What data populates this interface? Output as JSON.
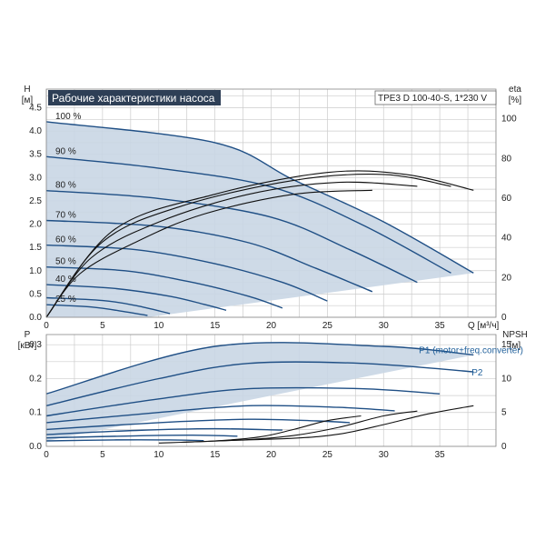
{
  "header": {
    "title": "Рабочие характеристики насоса",
    "model": "TPE3 D 100-40-S, 1*230 V"
  },
  "chart_data": [
    {
      "type": "line",
      "name": "Q-H",
      "xlabel": "Q [м³/ч]",
      "ylabel": "H [м]",
      "y2label": "eta [%]",
      "xlim": [
        0,
        40
      ],
      "ylim": [
        0,
        4.9
      ],
      "y2lim": [
        0,
        115
      ],
      "xticks": [
        0,
        5,
        10,
        15,
        20,
        25,
        30,
        35
      ],
      "yticks": [
        0.0,
        0.5,
        1.0,
        1.5,
        2.0,
        2.5,
        3.0,
        3.5,
        4.0,
        4.5
      ],
      "y2ticks": [
        0,
        20,
        40,
        60,
        80,
        100
      ],
      "grid": true,
      "head_curves": [
        {
          "label": "100 %",
          "points": [
            [
              0,
              4.2
            ],
            [
              15,
              3.75
            ],
            [
              22,
              2.95
            ],
            [
              30,
              2.05
            ],
            [
              38,
              0.95
            ]
          ]
        },
        {
          "label": "90 %",
          "points": [
            [
              0,
              3.45
            ],
            [
              10,
              3.2
            ],
            [
              20,
              2.8
            ],
            [
              28,
              2.0
            ],
            [
              36,
              0.95
            ]
          ]
        },
        {
          "label": "80 %",
          "points": [
            [
              0,
              2.72
            ],
            [
              10,
              2.55
            ],
            [
              20,
              2.15
            ],
            [
              27,
              1.45
            ],
            [
              33,
              0.75
            ]
          ]
        },
        {
          "label": "70 %",
          "points": [
            [
              0,
              2.08
            ],
            [
              10,
              1.95
            ],
            [
              18,
              1.6
            ],
            [
              24,
              1.05
            ],
            [
              29,
              0.55
            ]
          ]
        },
        {
          "label": "60 %",
          "points": [
            [
              0,
              1.55
            ],
            [
              8,
              1.45
            ],
            [
              15,
              1.15
            ],
            [
              21,
              0.75
            ],
            [
              25,
              0.35
            ]
          ]
        },
        {
          "label": "50 %",
          "points": [
            [
              0,
              1.08
            ],
            [
              7,
              1.0
            ],
            [
              13,
              0.75
            ],
            [
              18,
              0.45
            ],
            [
              21,
              0.2
            ]
          ]
        },
        {
          "label": "40 %",
          "points": [
            [
              0,
              0.7
            ],
            [
              6,
              0.62
            ],
            [
              11,
              0.45
            ],
            [
              14,
              0.28
            ],
            [
              16,
              0.15
            ]
          ]
        },
        {
          "label": "",
          "points": [
            [
              0,
              0.42
            ],
            [
              5,
              0.36
            ],
            [
              8,
              0.25
            ],
            [
              11,
              0.08
            ]
          ]
        },
        {
          "label": "25 %",
          "points": [
            [
              0,
              0.27
            ],
            [
              4,
              0.22
            ],
            [
              7,
              0.12
            ],
            [
              9,
              0.04
            ]
          ]
        }
      ],
      "eta_curves": [
        {
          "points": [
            [
              0,
              0
            ],
            [
              6,
              44
            ],
            [
              15,
              62
            ],
            [
              25,
              73
            ],
            [
              32,
              72
            ],
            [
              38,
              64
            ]
          ]
        },
        {
          "points": [
            [
              0,
              0
            ],
            [
              5,
              38
            ],
            [
              12,
              56
            ],
            [
              22,
              69
            ],
            [
              30,
              72
            ],
            [
              36,
              66
            ]
          ]
        },
        {
          "points": [
            [
              0,
              0
            ],
            [
              4,
              30
            ],
            [
              10,
              48
            ],
            [
              18,
              62
            ],
            [
              26,
              68
            ],
            [
              33,
              66
            ]
          ]
        },
        {
          "points": [
            [
              0,
              0
            ],
            [
              3,
              22
            ],
            [
              8,
              38
            ],
            [
              14,
              52
            ],
            [
              22,
              62
            ],
            [
              29,
              64
            ]
          ]
        }
      ]
    },
    {
      "type": "line",
      "name": "P-NPSH",
      "xlabel": "",
      "ylabel": "P [кВт]",
      "y2label": "NPSH [м]",
      "xlim": [
        0,
        40
      ],
      "ylim": [
        0,
        0.33
      ],
      "y2lim": [
        0,
        16.5
      ],
      "xticks": [
        0,
        5,
        10,
        15,
        20,
        25,
        30,
        35
      ],
      "yticks": [
        0.0,
        0.1,
        0.2,
        0.3
      ],
      "y2ticks": [
        0,
        5,
        10,
        15
      ],
      "grid": true,
      "power_curves": [
        {
          "label": "P1 (motor+freq.converter)",
          "points": [
            [
              0,
              0.155
            ],
            [
              15,
              0.295
            ],
            [
              30,
              0.295
            ],
            [
              38,
              0.27
            ]
          ]
        },
        {
          "label": "P2",
          "points": [
            [
              0,
              0.12
            ],
            [
              10,
              0.2
            ],
            [
              18,
              0.245
            ],
            [
              28,
              0.245
            ],
            [
              38,
              0.22
            ]
          ]
        },
        {
          "label": "",
          "points": [
            [
              0,
              0.09
            ],
            [
              10,
              0.14
            ],
            [
              18,
              0.17
            ],
            [
              28,
              0.17
            ],
            [
              35,
              0.155
            ]
          ]
        },
        {
          "label": "",
          "points": [
            [
              0,
              0.07
            ],
            [
              10,
              0.1
            ],
            [
              18,
              0.12
            ],
            [
              26,
              0.115
            ],
            [
              31,
              0.105
            ]
          ]
        },
        {
          "label": "",
          "points": [
            [
              0,
              0.05
            ],
            [
              10,
              0.07
            ],
            [
              18,
              0.08
            ],
            [
              24,
              0.075
            ],
            [
              27,
              0.07
            ]
          ]
        },
        {
          "label": "",
          "points": [
            [
              0,
              0.035
            ],
            [
              8,
              0.047
            ],
            [
              15,
              0.052
            ],
            [
              21,
              0.048
            ]
          ]
        },
        {
          "label": "",
          "points": [
            [
              0,
              0.025
            ],
            [
              8,
              0.031
            ],
            [
              13,
              0.033
            ],
            [
              17,
              0.03
            ]
          ]
        },
        {
          "label": "",
          "points": [
            [
              0,
              0.016
            ],
            [
              6,
              0.019
            ],
            [
              11,
              0.019
            ],
            [
              14,
              0.017
            ]
          ]
        }
      ],
      "npsh_curves": [
        {
          "points": [
            [
              15,
              0.8
            ],
            [
              22,
              1.2
            ],
            [
              26,
              1.8
            ],
            [
              30,
              3.2
            ],
            [
              34,
              4.8
            ],
            [
              38,
              6.0
            ]
          ]
        },
        {
          "points": [
            [
              12,
              0.6
            ],
            [
              18,
              1.0
            ],
            [
              22,
              1.6
            ],
            [
              26,
              2.8
            ],
            [
              30,
              4.5
            ],
            [
              33,
              5.2
            ]
          ]
        },
        {
          "points": [
            [
              10,
              0.5
            ],
            [
              15,
              0.8
            ],
            [
              19,
              1.4
            ],
            [
              22,
              2.5
            ],
            [
              25,
              3.8
            ],
            [
              28,
              4.5
            ]
          ]
        }
      ]
    }
  ],
  "colors": {
    "fill": "#c9d6e4",
    "curve": "#1f4f85",
    "eta": "#111111",
    "grid": "#cccccc",
    "title_bg": "#2e3f56"
  }
}
